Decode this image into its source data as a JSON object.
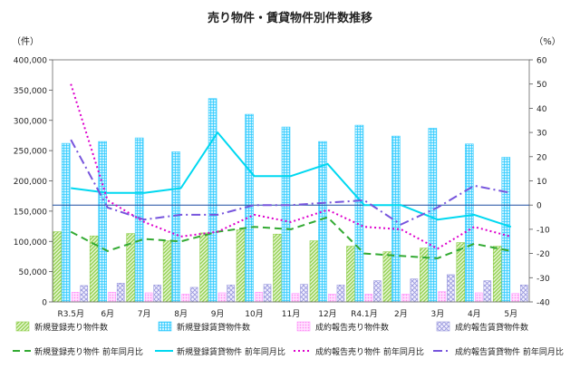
{
  "chart_data": {
    "type": "bar+line",
    "title": "売り物件・賃貸物件別件数推移",
    "ylabel_left": "（件）",
    "ylabel_right": "（%）",
    "categories": [
      "R3.5月",
      "6月",
      "7月",
      "8月",
      "9月",
      "10月",
      "11月",
      "12月",
      "R4.1月",
      "2月",
      "3月",
      "4月",
      "5月"
    ],
    "ylim_left": [
      0,
      400000
    ],
    "yticks_left": [
      "0",
      "50,000",
      "100,000",
      "150,000",
      "200,000",
      "250,000",
      "300,000",
      "350,000",
      "400,000"
    ],
    "ylim_right": [
      -40,
      60
    ],
    "yticks_right": [
      "-40",
      "-30",
      "-20",
      "-10",
      "0",
      "10",
      "20",
      "30",
      "40",
      "50",
      "60"
    ],
    "bar_series": [
      {
        "name": "新規登録売り物件数",
        "color": "#92d050",
        "pattern": "diag",
        "values": [
          116000,
          109000,
          113000,
          101000,
          114000,
          119000,
          112000,
          101000,
          92000,
          83000,
          89000,
          98000,
          92000
        ]
      },
      {
        "name": "新規登録賃貸物件数",
        "color": "#33ccff",
        "pattern": "cross",
        "values": [
          262000,
          265000,
          271000,
          248000,
          336000,
          310000,
          289000,
          265000,
          292000,
          274000,
          287000,
          261000,
          239000
        ]
      },
      {
        "name": "成約報告売り物件数",
        "color": "#ff99ff",
        "pattern": "dots",
        "values": [
          16000,
          16000,
          15000,
          13000,
          15000,
          16000,
          14000,
          13000,
          13000,
          13000,
          17000,
          15000,
          14000
        ]
      },
      {
        "name": "成約報告賃貸物件数",
        "color": "#9999dd",
        "pattern": "lattice",
        "values": [
          27000,
          31000,
          28000,
          24000,
          28000,
          29000,
          29000,
          28000,
          35000,
          38000,
          45000,
          35000,
          28000
        ]
      }
    ],
    "line_series": [
      {
        "name": "新規登録売り物件 前年同月比",
        "color": "#33aa33",
        "dash": "8,5",
        "values": [
          -11,
          -19,
          -14,
          -15,
          -11,
          -9,
          -10,
          -5,
          -20,
          -21,
          -22,
          -16,
          -19
        ]
      },
      {
        "name": "新規登録賃貸物件 前年同月比",
        "color": "#00d8f0",
        "dash": "",
        "values": [
          7,
          5,
          5,
          7,
          30,
          12,
          12,
          17,
          0,
          0,
          -6,
          -4,
          -9
        ]
      },
      {
        "name": "成約報告売り物件 前年同月比",
        "color": "#dd00cc",
        "dash": "2,3",
        "values": [
          50,
          2,
          -7,
          -13,
          -11,
          -4,
          -7,
          -2,
          -9,
          -10,
          -18,
          -9,
          -13
        ]
      },
      {
        "name": "成約報告賃貸物件 前年同月比",
        "color": "#7755dd",
        "dash": "10,4,2,4",
        "values": [
          27,
          -1,
          -6,
          -4,
          -4,
          0,
          0,
          1,
          2,
          -8,
          -1,
          8,
          5
        ]
      }
    ]
  }
}
